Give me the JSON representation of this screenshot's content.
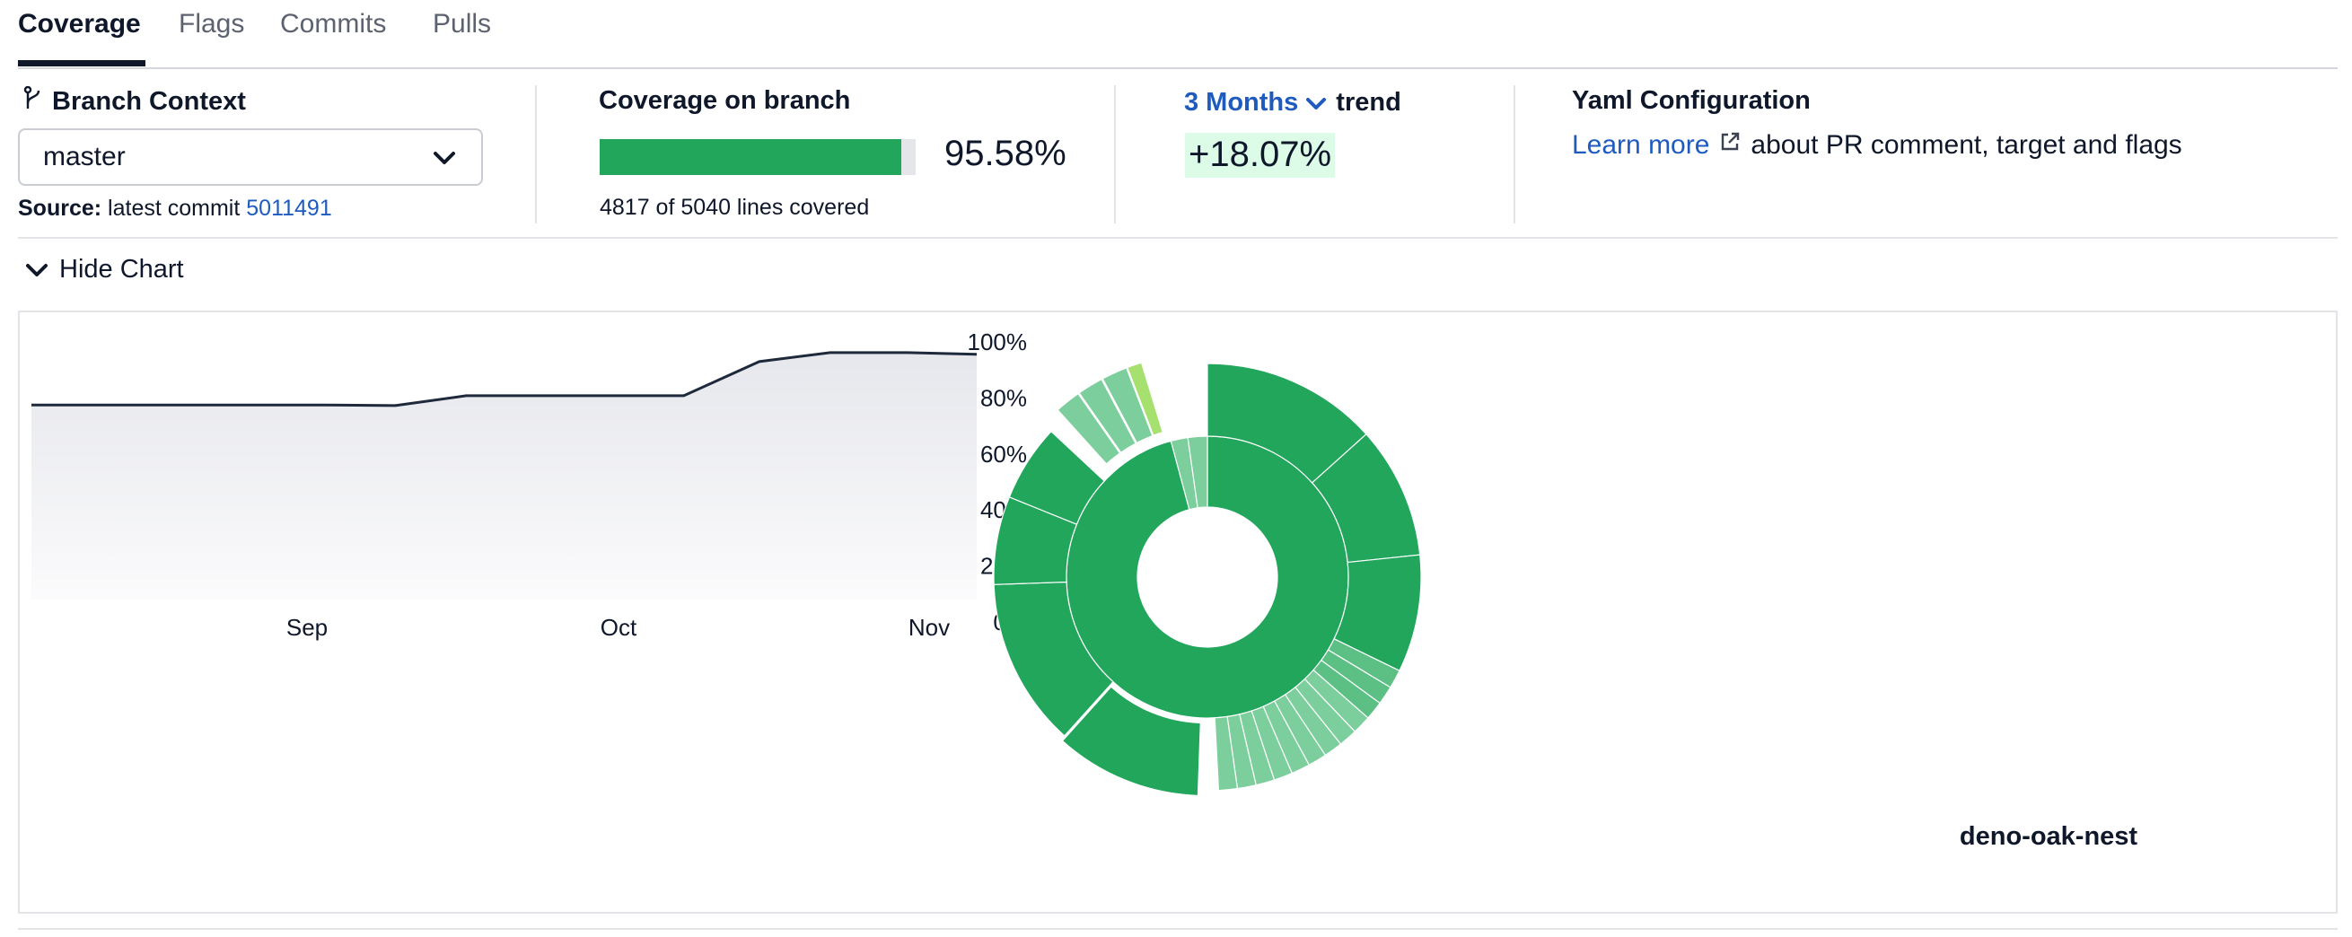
{
  "tabs": [
    {
      "label": "Coverage",
      "active": true
    },
    {
      "label": "Flags",
      "active": false
    },
    {
      "label": "Commits",
      "active": false
    },
    {
      "label": "Pulls",
      "active": false
    }
  ],
  "branch": {
    "title": "Branch Context",
    "selected": "master",
    "source_label": "Source:",
    "source_text": "latest commit",
    "commit": "5011491"
  },
  "coverage": {
    "title": "Coverage on branch",
    "percent": 95.58,
    "percent_label": "95.58%",
    "lines_label": "4817 of 5040 lines covered",
    "bar_color": "#21a65c"
  },
  "trend": {
    "period": "3 Months",
    "label": "trend",
    "value": "+18.07%"
  },
  "yaml": {
    "title": "Yaml Configuration",
    "link": "Learn more",
    "text": "about PR comment, target and flags"
  },
  "toggle": {
    "label": "Hide Chart"
  },
  "chart_data": {
    "type": "area",
    "x_ticks": [
      "Sep",
      "Oct",
      "Nov"
    ],
    "y_ticks": [
      "100%",
      "80%",
      "60%",
      "40%",
      "20%",
      "0%"
    ],
    "ylim": [
      0,
      100
    ],
    "points": [
      {
        "x": 0.0,
        "y": 77.5
      },
      {
        "x": 0.31,
        "y": 77.5
      },
      {
        "x": 0.385,
        "y": 77.3
      },
      {
        "x": 0.46,
        "y": 80.8
      },
      {
        "x": 0.69,
        "y": 80.8
      },
      {
        "x": 0.77,
        "y": 93.0
      },
      {
        "x": 0.845,
        "y": 96.2
      },
      {
        "x": 0.925,
        "y": 96.2
      },
      {
        "x": 1.0,
        "y": 95.6
      }
    ],
    "line_color": "#1e293b"
  },
  "sunburst": {
    "label": "deno-oak-nest",
    "colors": {
      "full": "#21a65c",
      "partial": "#7ccf9c",
      "mid": "#5cc085",
      "yellow": "#a6e06e"
    }
  }
}
